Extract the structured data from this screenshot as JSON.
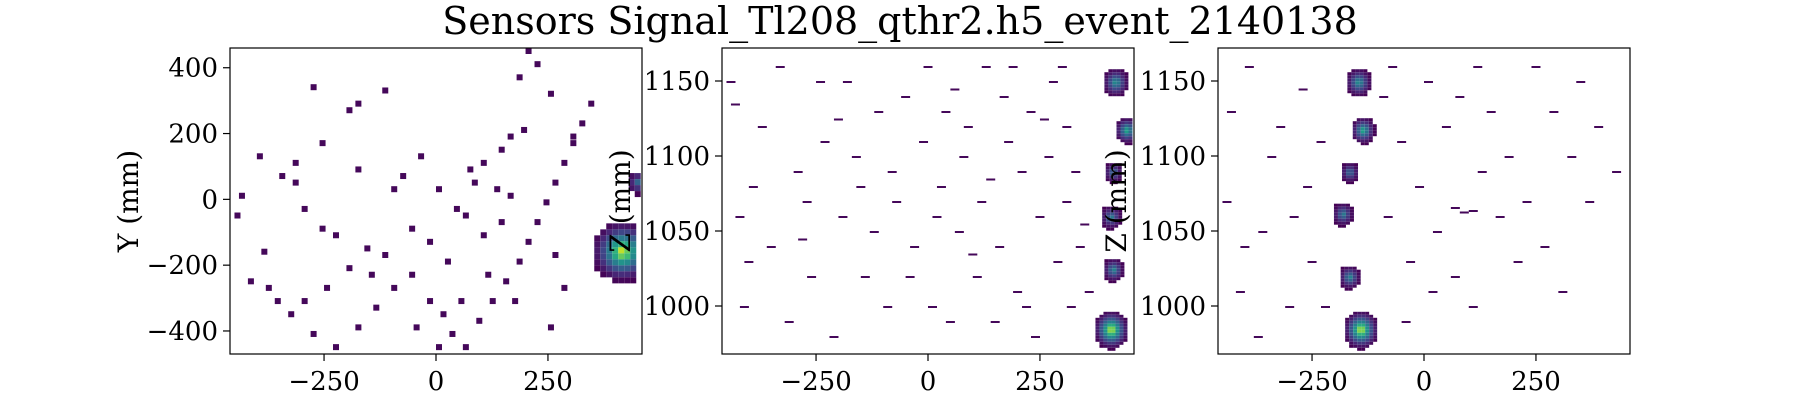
{
  "figure": {
    "title": "Sensors Signal_Tl208_qthr2.h5_event_2140138"
  },
  "chart_data": [
    {
      "type": "heatmap",
      "title": "",
      "xlabel": "",
      "ylabel": "Y (mm)",
      "xlim": [
        -460,
        460
      ],
      "ylim": [
        -470,
        460
      ],
      "xticks": [
        "−250",
        "0",
        "250"
      ],
      "xtick_values": [
        -250,
        0,
        250
      ],
      "yticks": [
        "400",
        "200",
        "0",
        "−200",
        "−400"
      ],
      "ytick_values": [
        400,
        200,
        0,
        -200,
        -400
      ],
      "colormap": "viridis",
      "sparse_cells": [
        [
          -280,
          350
        ],
        [
          -200,
          280
        ],
        [
          -180,
          300
        ],
        [
          -120,
          340
        ],
        [
          -400,
          140
        ],
        [
          -350,
          80
        ],
        [
          -320,
          60
        ],
        [
          -300,
          -20
        ],
        [
          -260,
          -80
        ],
        [
          -230,
          -100
        ],
        [
          -420,
          -240
        ],
        [
          -380,
          -260
        ],
        [
          -360,
          -300
        ],
        [
          -330,
          -340
        ],
        [
          -280,
          -400
        ],
        [
          -230,
          -440
        ],
        [
          -180,
          -380
        ],
        [
          -140,
          -320
        ],
        [
          -100,
          -260
        ],
        [
          -60,
          -220
        ],
        [
          -20,
          -300
        ],
        [
          10,
          -340
        ],
        [
          30,
          -400
        ],
        [
          60,
          -440
        ],
        [
          90,
          -360
        ],
        [
          120,
          -300
        ],
        [
          150,
          -240
        ],
        [
          180,
          -180
        ],
        [
          200,
          -120
        ],
        [
          220,
          -60
        ],
        [
          240,
          0
        ],
        [
          260,
          60
        ],
        [
          280,
          120
        ],
        [
          300,
          180
        ],
        [
          320,
          240
        ],
        [
          340,
          300
        ],
        [
          180,
          380
        ],
        [
          200,
          460
        ],
        [
          220,
          420
        ],
        [
          250,
          330
        ],
        [
          300,
          200
        ],
        [
          -40,
          140
        ],
        [
          -80,
          80
        ],
        [
          0,
          40
        ],
        [
          40,
          -20
        ],
        [
          80,
          60
        ],
        [
          100,
          120
        ],
        [
          140,
          160
        ],
        [
          160,
          200
        ],
        [
          190,
          220
        ],
        [
          -200,
          -200
        ],
        [
          -160,
          -140
        ],
        [
          -120,
          -160
        ],
        [
          -60,
          -80
        ],
        [
          -20,
          -120
        ],
        [
          20,
          -180
        ],
        [
          60,
          -40
        ],
        [
          100,
          -100
        ],
        [
          140,
          -60
        ],
        [
          160,
          20
        ],
        [
          -440,
          20
        ],
        [
          -450,
          -40
        ],
        [
          -300,
          -300
        ],
        [
          -250,
          -260
        ],
        [
          -150,
          -220
        ],
        [
          -50,
          -380
        ],
        [
          0,
          -440
        ],
        [
          50,
          -300
        ],
        [
          110,
          -220
        ],
        [
          170,
          -300
        ],
        [
          250,
          -380
        ],
        [
          280,
          -260
        ],
        [
          260,
          -160
        ],
        [
          130,
          40
        ],
        [
          70,
          100
        ],
        [
          -100,
          40
        ],
        [
          -180,
          100
        ],
        [
          -260,
          180
        ],
        [
          -320,
          120
        ],
        [
          -390,
          -150
        ]
      ],
      "hotspots": [
        {
          "x": 410,
          "y": -150,
          "r": 70,
          "peak": 1.0
        },
        {
          "x": 445,
          "y": 60,
          "r": 28,
          "peak": 0.35
        }
      ]
    },
    {
      "type": "heatmap",
      "title": "",
      "xlabel": "",
      "ylabel": "Z (mm)",
      "xlim": [
        -460,
        460
      ],
      "ylim": [
        968,
        1172
      ],
      "xticks": [
        "−250",
        "0",
        "250"
      ],
      "xtick_values": [
        -250,
        0,
        250
      ],
      "yticks": [
        "1150",
        "1100",
        "1050",
        "1000"
      ],
      "ytick_values": [
        1150,
        1100,
        1050,
        1000
      ],
      "colormap": "viridis",
      "sparse_cells": [
        [
          -440,
          1135
        ],
        [
          -380,
          1120
        ],
        [
          -300,
          1090
        ],
        [
          -250,
          1150
        ],
        [
          -200,
          1060
        ],
        [
          -150,
          1020
        ],
        [
          -100,
          1000
        ],
        [
          -60,
          1140
        ],
        [
          -20,
          1110
        ],
        [
          20,
          1080
        ],
        [
          60,
          1050
        ],
        [
          100,
          1020
        ],
        [
          140,
          990
        ],
        [
          180,
          1160
        ],
        [
          220,
          1130
        ],
        [
          260,
          1100
        ],
        [
          300,
          1070
        ],
        [
          330,
          1040
        ],
        [
          350,
          1010
        ],
        [
          -420,
          1000
        ],
        [
          -360,
          1040
        ],
        [
          -320,
          990
        ],
        [
          -270,
          1020
        ],
        [
          -220,
          980
        ],
        [
          -170,
          1100
        ],
        [
          -120,
          1130
        ],
        [
          -80,
          1070
        ],
        [
          -40,
          1040
        ],
        [
          0,
          1000
        ],
        [
          40,
          990
        ],
        [
          80,
          1120
        ],
        [
          120,
          1160
        ],
        [
          160,
          1140
        ],
        [
          200,
          1090
        ],
        [
          240,
          1060
        ],
        [
          280,
          1030
        ],
        [
          310,
          1000
        ],
        [
          -400,
          1080
        ],
        [
          -340,
          1160
        ],
        [
          -280,
          1070
        ],
        [
          -240,
          1110
        ],
        [
          -190,
          1150
        ],
        [
          -130,
          1050
        ],
        [
          -90,
          1090
        ],
        [
          -10,
          1160
        ],
        [
          30,
          1130
        ],
        [
          70,
          1100
        ],
        [
          110,
          1070
        ],
        [
          150,
          1040
        ],
        [
          190,
          1010
        ],
        [
          230,
          980
        ],
        [
          270,
          1150
        ],
        [
          300,
          1120
        ],
        [
          -450,
          1150
        ],
        [
          -430,
          1060
        ],
        [
          -410,
          1030
        ],
        [
          -290,
          1045
        ],
        [
          -210,
          1125
        ],
        [
          -160,
          1080
        ],
        [
          -50,
          1020
        ],
        [
          10,
          1060
        ],
        [
          50,
          1145
        ],
        [
          90,
          1035
        ],
        [
          130,
          1085
        ],
        [
          170,
          1110
        ],
        [
          210,
          1000
        ],
        [
          250,
          1125
        ],
        [
          290,
          1160
        ],
        [
          320,
          1090
        ],
        [
          340,
          1055
        ]
      ],
      "hotspots": [
        {
          "x": 405,
          "y": 985,
          "r": 40,
          "peak": 1.0
        },
        {
          "x": 410,
          "y": 1025,
          "r": 25,
          "peak": 0.5
        },
        {
          "x": 405,
          "y": 1060,
          "r": 25,
          "peak": 0.45
        },
        {
          "x": 410,
          "y": 1090,
          "r": 22,
          "peak": 0.4
        },
        {
          "x": 440,
          "y": 1118,
          "r": 28,
          "peak": 0.65
        },
        {
          "x": 415,
          "y": 1150,
          "r": 30,
          "peak": 0.55
        }
      ]
    },
    {
      "type": "heatmap",
      "title": "",
      "xlabel": "",
      "ylabel": "Z (mm)",
      "xlim": [
        -460,
        460
      ],
      "ylim": [
        968,
        1172
      ],
      "xticks": [
        "−250",
        "0",
        "250"
      ],
      "xtick_values": [
        -250,
        0,
        250
      ],
      "yticks": [
        "1150",
        "1100",
        "1050",
        "1000"
      ],
      "ytick_values": [
        1150,
        1100,
        1050,
        1000
      ],
      "colormap": "viridis",
      "sparse_cells": [
        [
          -440,
          1130
        ],
        [
          -400,
          1160
        ],
        [
          -350,
          1100
        ],
        [
          -300,
          1060
        ],
        [
          -260,
          1030
        ],
        [
          -230,
          1000
        ],
        [
          -420,
          1010
        ],
        [
          -380,
          980
        ],
        [
          -330,
          1120
        ],
        [
          -280,
          1145
        ],
        [
          -100,
          1140
        ],
        [
          -60,
          1110
        ],
        [
          -20,
          1080
        ],
        [
          20,
          1050
        ],
        [
          60,
          1020
        ],
        [
          100,
          1000
        ],
        [
          140,
          1130
        ],
        [
          180,
          1100
        ],
        [
          220,
          1070
        ],
        [
          260,
          1040
        ],
        [
          300,
          1010
        ],
        [
          340,
          1150
        ],
        [
          380,
          1120
        ],
        [
          420,
          1090
        ],
        [
          450,
          997
        ],
        [
          60,
          1066
        ],
        [
          80,
          1063
        ],
        [
          100,
          1064
        ],
        [
          -80,
          1160
        ],
        [
          -40,
          1030
        ],
        [
          0,
          1150
        ],
        [
          40,
          1120
        ],
        [
          120,
          1090
        ],
        [
          160,
          1060
        ],
        [
          200,
          1030
        ],
        [
          240,
          1160
        ],
        [
          280,
          1130
        ],
        [
          320,
          1100
        ],
        [
          360,
          1070
        ],
        [
          -450,
          1070
        ],
        [
          -410,
          1040
        ],
        [
          -370,
          1050
        ],
        [
          -310,
          1000
        ],
        [
          -270,
          1080
        ],
        [
          -240,
          1110
        ],
        [
          -90,
          1060
        ],
        [
          -50,
          990
        ],
        [
          10,
          1010
        ],
        [
          70,
          1140
        ],
        [
          110,
          1160
        ]
      ],
      "hotspots": [
        {
          "x": -145,
          "y": 985,
          "r": 40,
          "peak": 1.0
        },
        {
          "x": -170,
          "y": 1020,
          "r": 25,
          "peak": 0.5
        },
        {
          "x": -185,
          "y": 1062,
          "r": 25,
          "peak": 0.45
        },
        {
          "x": -170,
          "y": 1090,
          "r": 22,
          "peak": 0.4
        },
        {
          "x": -140,
          "y": 1118,
          "r": 28,
          "peak": 0.65
        },
        {
          "x": -150,
          "y": 1150,
          "r": 30,
          "peak": 0.55
        }
      ]
    }
  ]
}
